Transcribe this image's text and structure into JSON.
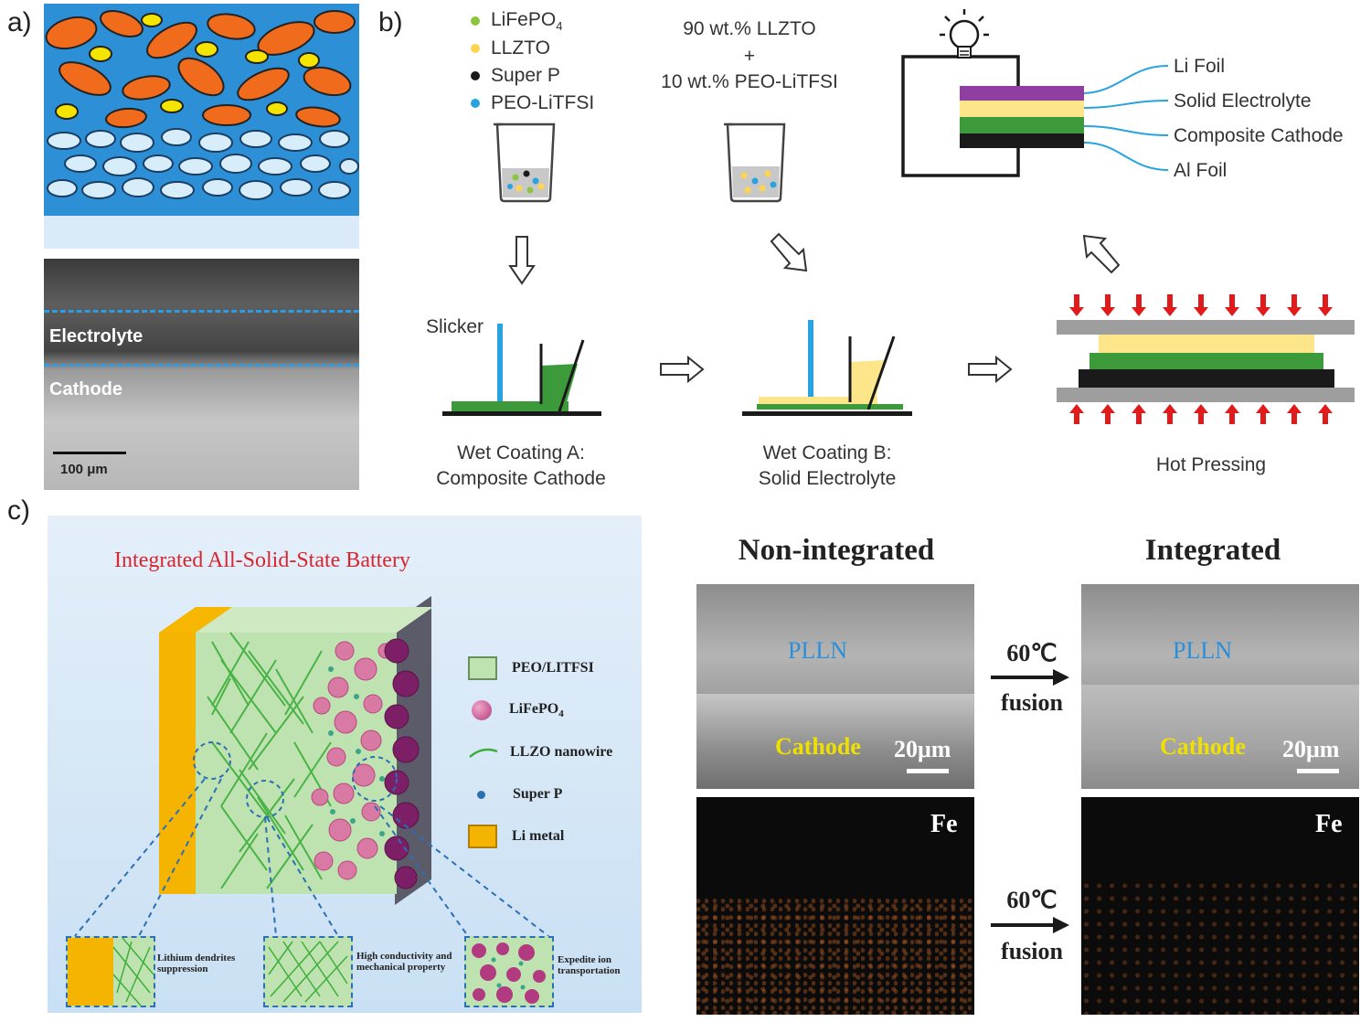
{
  "panel_a": {
    "label": "a)",
    "sem_labels": {
      "electrolyte": "Electrolyte",
      "cathode": "Cathode",
      "scale": "100 μm"
    }
  },
  "panel_b": {
    "label": "b)",
    "legend": [
      {
        "text": "LiFePO",
        "sub": "4",
        "color": "#8cc63f"
      },
      {
        "text": "LLZTO",
        "sub": "",
        "color": "#ffd54f"
      },
      {
        "text": "Super P",
        "sub": "",
        "color": "#1a1a1a"
      },
      {
        "text": "PEO-LiTFSI",
        "sub": "",
        "color": "#29a3e0"
      }
    ],
    "mix_line1": "90 wt.%  LLZTO",
    "mix_plus": "+",
    "mix_line2": "10 wt.%  PEO-LiTFSI",
    "slicker": "Slicker",
    "coat_a_line1": "Wet Coating A:",
    "coat_a_line2": "Composite Cathode",
    "coat_b_line1": "Wet Coating B:",
    "coat_b_line2": "Solid Electrolyte",
    "hot_pressing": "Hot Pressing",
    "stack_labels": [
      "Li Foil",
      "Solid Electrolyte",
      "Composite Cathode",
      "Al Foil"
    ],
    "stack_colors": [
      "#8e3fa0",
      "#fde58a",
      "#3c9a3a",
      "#1a1a1a"
    ]
  },
  "panel_c": {
    "label": "c)",
    "title": "Integrated All-Solid-State Battery",
    "legend": [
      {
        "text": "PEO/LITFSI",
        "sub": ""
      },
      {
        "text": "LiFePO",
        "sub": "4"
      },
      {
        "text": "LLZO nanowire",
        "sub": ""
      },
      {
        "text": "Super P",
        "sub": ""
      },
      {
        "text": "Li metal",
        "sub": ""
      }
    ],
    "callouts": [
      "Lithium dendrites suppression",
      "High conductivity and mechanical property",
      "Expedite ion transportation"
    ],
    "non_integrated": "Non-integrated",
    "integrated": "Integrated",
    "pllc": "PLLN",
    "cathode": "Cathode",
    "scale": "20μm",
    "fe": "Fe",
    "arrow_temp": "60℃",
    "arrow_word": "fusion"
  }
}
